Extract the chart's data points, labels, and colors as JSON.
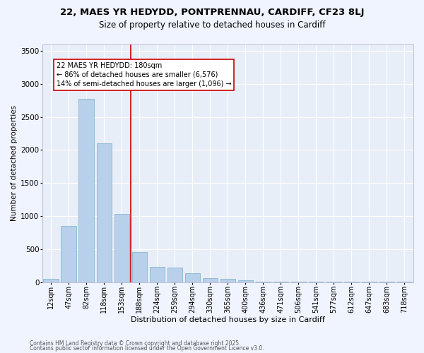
{
  "title1": "22, MAES YR HEDYDD, PONTPRENNAU, CARDIFF, CF23 8LJ",
  "title2": "Size of property relative to detached houses in Cardiff",
  "xlabel": "Distribution of detached houses by size in Cardiff",
  "ylabel": "Number of detached properties",
  "bar_labels": [
    "12sqm",
    "47sqm",
    "82sqm",
    "118sqm",
    "153sqm",
    "188sqm",
    "224sqm",
    "259sqm",
    "294sqm",
    "330sqm",
    "365sqm",
    "400sqm",
    "436sqm",
    "471sqm",
    "506sqm",
    "541sqm",
    "577sqm",
    "612sqm",
    "647sqm",
    "683sqm",
    "718sqm"
  ],
  "bar_values": [
    55,
    850,
    2775,
    2100,
    1030,
    460,
    230,
    225,
    135,
    65,
    55,
    30,
    10,
    5,
    5,
    2,
    2,
    2,
    2,
    2,
    2
  ],
  "ylim": [
    0,
    3600
  ],
  "yticks": [
    0,
    500,
    1000,
    1500,
    2000,
    2500,
    3000,
    3500
  ],
  "bar_color": "#b8d0ea",
  "bar_edge_color": "#7aaec8",
  "fig_bg_color": "#f0f4ff",
  "axes_bg_color": "#e8eef8",
  "grid_color": "#ffffff",
  "vline_color": "#cc0000",
  "vline_index": 5,
  "annotation_line1": "22 MAES YR HEDYDD: 180sqm",
  "annotation_line2": "← 86% of detached houses are smaller (6,576)",
  "annotation_line3": "14% of semi-detached houses are larger (1,096) →",
  "annotation_box_edgecolor": "#cc0000",
  "footer1": "Contains HM Land Registry data © Crown copyright and database right 2025.",
  "footer2": "Contains public sector information licensed under the Open Government Licence v3.0.",
  "title1_fontsize": 9.5,
  "title2_fontsize": 8.5,
  "xlabel_fontsize": 8,
  "ylabel_fontsize": 7.5,
  "tick_fontsize": 7,
  "annotation_fontsize": 7,
  "footer_fontsize": 5.5
}
